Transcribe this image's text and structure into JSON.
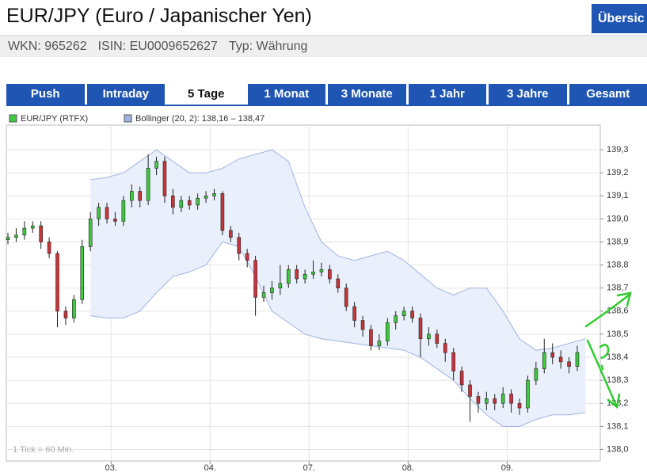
{
  "header": {
    "title": "EUR/JPY (Euro / Japanischer Yen)",
    "button": "Übersic",
    "info": [
      "WKN: 965262",
      "ISIN: EU0009652627",
      "Typ: Währung"
    ]
  },
  "tabs": [
    {
      "label": "Push",
      "active": false
    },
    {
      "label": "Intraday",
      "active": false
    },
    {
      "label": "5 Tage",
      "active": true
    },
    {
      "label": "1 Monat",
      "active": false
    },
    {
      "label": "3 Monate",
      "active": false
    },
    {
      "label": "1 Jahr",
      "active": false
    },
    {
      "label": "3 Jahre",
      "active": false
    },
    {
      "label": "Gesamt",
      "active": false
    }
  ],
  "chart_data": {
    "type": "candlestick",
    "note": "1 Tick = 60 Min.",
    "grid": true,
    "xlim": [
      0,
      143
    ],
    "xticks": [
      {
        "value": 25,
        "label": "03."
      },
      {
        "value": 49,
        "label": "04."
      },
      {
        "value": 73,
        "label": "07."
      },
      {
        "value": 97,
        "label": "08."
      },
      {
        "value": 121,
        "label": "09."
      }
    ],
    "ylim": [
      137.95,
      139.4
    ],
    "yticks": [
      {
        "value": 138.0,
        "label": "138,0"
      },
      {
        "value": 138.1,
        "label": "138,1"
      },
      {
        "value": 138.2,
        "label": "138,2"
      },
      {
        "value": 138.3,
        "label": "138,3"
      },
      {
        "value": 138.4,
        "label": "138,4"
      },
      {
        "value": 138.5,
        "label": "138,5"
      },
      {
        "value": 138.6,
        "label": "138,6"
      },
      {
        "value": 138.7,
        "label": "138,7"
      },
      {
        "value": 138.8,
        "label": "138,8"
      },
      {
        "value": 138.9,
        "label": "138,9"
      },
      {
        "value": 139.0,
        "label": "139,0"
      },
      {
        "value": 139.1,
        "label": "139,1"
      },
      {
        "value": 139.2,
        "label": "139,2"
      },
      {
        "value": 139.3,
        "label": "139,3"
      }
    ],
    "x": [
      0,
      2,
      4,
      6,
      8,
      10,
      12,
      14,
      16,
      18,
      20,
      22,
      24,
      26,
      28,
      30,
      32,
      34,
      36,
      38,
      40,
      42,
      44,
      46,
      48,
      50,
      52,
      54,
      56,
      58,
      60,
      62,
      64,
      66,
      68,
      70,
      72,
      74,
      76,
      78,
      80,
      82,
      84,
      86,
      88,
      90,
      92,
      94,
      96,
      98,
      100,
      102,
      104,
      106,
      108,
      110,
      112,
      114,
      116,
      118,
      120,
      122,
      124,
      126,
      128,
      130,
      132,
      134,
      136,
      138
    ],
    "series": [
      {
        "name": "EUR/JPY (RTFX)",
        "up_color": "#3ec93e",
        "down_color": "#c8343a",
        "open": [
          138.91,
          138.92,
          138.93,
          138.96,
          138.97,
          138.9,
          138.85,
          138.6,
          138.57,
          138.65,
          138.88,
          139.0,
          139.05,
          139.0,
          138.99,
          139.08,
          139.12,
          139.08,
          139.22,
          139.25,
          139.1,
          139.05,
          139.08,
          139.06,
          139.09,
          139.1,
          139.11,
          138.95,
          138.92,
          138.85,
          138.82,
          138.66,
          138.68,
          138.7,
          138.72,
          138.78,
          138.74,
          138.76,
          138.77,
          138.78,
          138.74,
          138.7,
          138.62,
          138.56,
          138.52,
          138.45,
          138.47,
          138.55,
          138.58,
          138.6,
          138.57,
          138.48,
          138.5,
          138.46,
          138.42,
          138.34,
          138.28,
          138.23,
          138.2,
          138.22,
          138.2,
          138.24,
          138.2,
          138.18,
          138.3,
          138.35,
          138.42,
          138.4,
          138.38,
          138.36
        ],
        "high": [
          138.94,
          138.96,
          138.99,
          138.99,
          138.99,
          138.92,
          138.86,
          138.62,
          138.67,
          138.91,
          139.03,
          139.07,
          139.07,
          139.03,
          139.1,
          139.15,
          139.14,
          139.28,
          139.27,
          139.27,
          139.13,
          139.1,
          139.1,
          139.11,
          139.12,
          139.13,
          139.12,
          138.97,
          138.94,
          138.87,
          138.84,
          138.71,
          138.73,
          138.8,
          138.8,
          138.8,
          138.78,
          138.82,
          138.81,
          138.8,
          138.76,
          138.72,
          138.64,
          138.58,
          138.54,
          138.5,
          138.57,
          138.6,
          138.62,
          138.62,
          138.59,
          138.53,
          138.52,
          138.48,
          138.44,
          138.36,
          138.3,
          138.25,
          138.25,
          138.24,
          138.27,
          138.26,
          138.22,
          138.32,
          138.38,
          138.48,
          138.46,
          138.43,
          138.4,
          138.45
        ],
        "low": [
          138.89,
          138.9,
          138.91,
          138.94,
          138.87,
          138.83,
          138.53,
          138.54,
          138.55,
          138.63,
          138.86,
          138.97,
          138.98,
          138.97,
          138.97,
          139.05,
          139.05,
          139.06,
          139.19,
          139.07,
          139.02,
          139.03,
          139.04,
          139.04,
          139.07,
          139.08,
          138.93,
          138.9,
          138.82,
          138.79,
          138.58,
          138.64,
          138.65,
          138.67,
          138.7,
          138.72,
          138.72,
          138.74,
          138.75,
          138.72,
          138.68,
          138.6,
          138.53,
          138.49,
          138.43,
          138.43,
          138.45,
          138.52,
          138.56,
          138.55,
          138.4,
          138.45,
          138.44,
          138.38,
          138.3,
          138.25,
          138.12,
          138.16,
          138.17,
          138.17,
          138.18,
          138.16,
          138.15,
          138.16,
          138.28,
          138.33,
          138.37,
          138.35,
          138.33,
          138.34
        ],
        "close": [
          138.92,
          138.93,
          138.96,
          138.97,
          138.9,
          138.85,
          138.6,
          138.57,
          138.65,
          138.88,
          139.0,
          139.05,
          139.0,
          138.99,
          139.08,
          139.12,
          139.08,
          139.22,
          139.25,
          139.1,
          139.05,
          139.08,
          139.06,
          139.09,
          139.1,
          139.11,
          138.95,
          138.92,
          138.85,
          138.82,
          138.66,
          138.68,
          138.7,
          138.72,
          138.78,
          138.74,
          138.76,
          138.77,
          138.78,
          138.74,
          138.7,
          138.62,
          138.56,
          138.52,
          138.45,
          138.47,
          138.55,
          138.58,
          138.6,
          138.57,
          138.48,
          138.5,
          138.46,
          138.42,
          138.34,
          138.28,
          138.23,
          138.2,
          138.22,
          138.2,
          138.24,
          138.2,
          138.18,
          138.3,
          138.35,
          138.42,
          138.4,
          138.38,
          138.36,
          138.42
        ]
      }
    ],
    "bands": {
      "name": "Bollinger (20, 2): 138,16 – 138,47",
      "color": "#9fb4e3",
      "fill": "#e9effb",
      "x": [
        20,
        24,
        28,
        32,
        36,
        40,
        44,
        48,
        52,
        56,
        60,
        64,
        68,
        72,
        76,
        80,
        84,
        88,
        92,
        96,
        100,
        104,
        108,
        112,
        116,
        120,
        124,
        128,
        132,
        136,
        140
      ],
      "upper": [
        139.17,
        139.18,
        139.2,
        139.25,
        139.3,
        139.25,
        139.2,
        139.2,
        139.22,
        139.26,
        139.28,
        139.3,
        139.25,
        139.05,
        138.9,
        138.84,
        138.82,
        138.84,
        138.86,
        138.82,
        138.76,
        138.7,
        138.67,
        138.7,
        138.7,
        138.6,
        138.48,
        138.43,
        138.44,
        138.46,
        138.48
      ],
      "lower": [
        138.58,
        138.57,
        138.57,
        138.6,
        138.68,
        138.75,
        138.77,
        138.8,
        138.9,
        138.88,
        138.75,
        138.6,
        138.55,
        138.5,
        138.48,
        138.47,
        138.46,
        138.45,
        138.44,
        138.43,
        138.4,
        138.35,
        138.3,
        138.22,
        138.15,
        138.1,
        138.1,
        138.13,
        138.15,
        138.15,
        138.16
      ]
    }
  }
}
